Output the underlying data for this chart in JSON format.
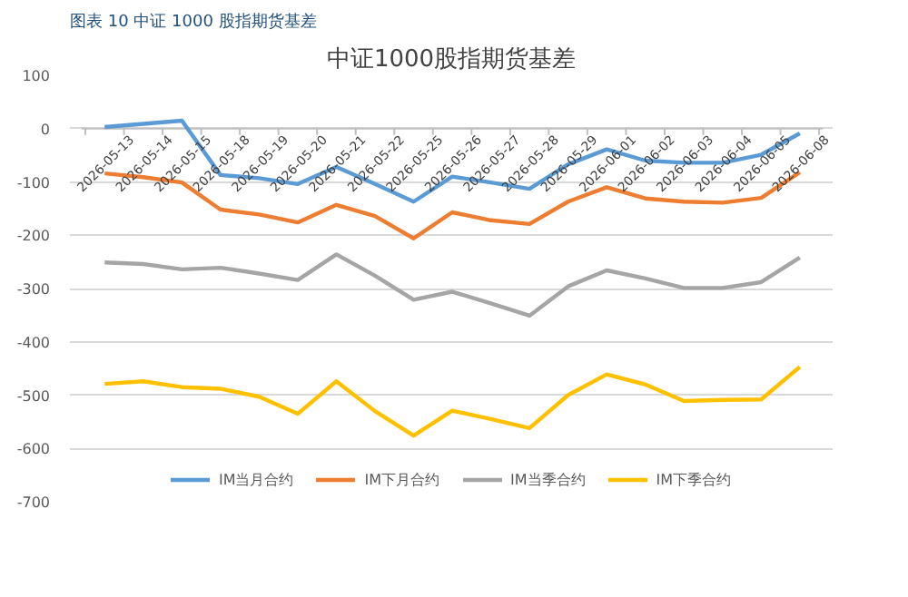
{
  "chart_data": {
    "type": "line",
    "title": "中证1000股指期货基差",
    "annotations": [
      "图表 10  中证 1000 股指期货基差"
    ],
    "categories": [
      "2026-05-13",
      "2026-05-14",
      "2026-05-15",
      "2026-05-18",
      "2026-05-19",
      "2026-05-20",
      "2026-05-21",
      "2026-05-22",
      "2026-05-25",
      "2026-05-26",
      "2026-05-27",
      "2026-05-28",
      "2026-05-29",
      "2026-06-01",
      "2026-06-02",
      "2026-06-03",
      "2026-06-04",
      "2026-06-05",
      "2026-06-08"
    ],
    "series": [
      {
        "name": "IM当月合约",
        "color": "#5b9bd5",
        "values": [
          3,
          9,
          15,
          -87,
          -93,
          -104,
          -72,
          -104,
          -137,
          -90,
          -101,
          -113,
          -67,
          -39,
          -60,
          -64,
          -64,
          -49,
          -9
        ]
      },
      {
        "name": "IM下月合约",
        "color": "#ed7d31",
        "values": [
          -84,
          -91,
          -101,
          -152,
          -161,
          -176,
          -143,
          -164,
          -206,
          -157,
          -172,
          -179,
          -137,
          -110,
          -131,
          -137,
          -139,
          -130,
          -82
        ]
      },
      {
        "name": "IM当季合约",
        "color": "#a5a5a5",
        "values": [
          -251,
          -254,
          -264,
          -261,
          -272,
          -284,
          -236,
          -276,
          -321,
          -306,
          -328,
          -351,
          -296,
          -266,
          -281,
          -299,
          -299,
          -288,
          -242
        ]
      },
      {
        "name": "IM下季合约",
        "color": "#ffc000",
        "values": [
          -479,
          -474,
          -485,
          -488,
          -503,
          -535,
          -474,
          -530,
          -576,
          -529,
          -545,
          -562,
          -500,
          -461,
          -480,
          -511,
          -509,
          -508,
          -447
        ]
      }
    ],
    "ylim": [
      -700,
      100
    ],
    "yticks": [
      100,
      0,
      -100,
      -200,
      -300,
      -400,
      -500,
      -600,
      -700
    ],
    "grid": "y",
    "legend": "bottom",
    "line_style": "solid"
  }
}
